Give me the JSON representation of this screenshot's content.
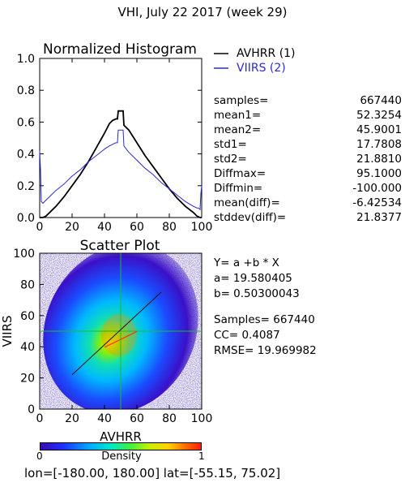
{
  "page_title": "VHI,  July 22 2017 (week 29)",
  "histogram": {
    "title": "Normalized Histogram",
    "legend": [
      {
        "label": "AVHRR (1)",
        "color": "#000000"
      },
      {
        "label": "VIIRS (2)",
        "color": "#2a2ad2"
      }
    ],
    "xticks": [
      "0",
      "20",
      "40",
      "60",
      "80",
      "100"
    ],
    "yticks": [
      "0.0",
      "0.2",
      "0.4",
      "0.6",
      "0.8",
      "1.0"
    ]
  },
  "stats": [
    {
      "name": "samples=",
      "value": "667440"
    },
    {
      "name": "mean1=",
      "value": "52.3254"
    },
    {
      "name": "mean2=",
      "value": "45.9001"
    },
    {
      "name": "std1=",
      "value": "17.7808"
    },
    {
      "name": "std2=",
      "value": "21.8810"
    },
    {
      "name": "Diffmax=",
      "value": "95.1000"
    },
    {
      "name": "Diffmin=",
      "value": "-100.000"
    },
    {
      "name": "mean(diff)=",
      "value": "-6.42534"
    },
    {
      "name": "stddev(diff)=",
      "value": "21.8377"
    }
  ],
  "scatter": {
    "title": "Scatter Plot",
    "xlabel": "AVHRR",
    "ylabel": "VIIRS",
    "xticks": [
      "0",
      "20",
      "40",
      "60",
      "80",
      "100"
    ],
    "yticks": [
      "0",
      "20",
      "40",
      "60",
      "80",
      "100"
    ],
    "equation": "Y= a +b * X",
    "a_line": "a= 19.580405",
    "b_line": "b= 0.50300043",
    "samples_line": "Samples= 667440",
    "cc_line": "CC=  0.4087",
    "rmse_line": "RMSE= 19.969982"
  },
  "colorbar": {
    "label": "Density",
    "min_label": "0",
    "max_label": "1"
  },
  "footer": "lon=[-180.00, 180.00] lat=[-55.15, 75.02]",
  "chart_data": [
    {
      "type": "line",
      "title": "Normalized Histogram",
      "xlim": [
        0,
        100
      ],
      "ylim": [
        0,
        1
      ],
      "series": [
        {
          "name": "AVHRR (1)",
          "color": "#000000",
          "x": [
            0,
            2,
            4,
            6,
            8,
            10,
            15,
            20,
            25,
            30,
            35,
            40,
            43,
            45,
            47,
            48,
            48.5,
            50,
            51.5,
            52,
            53,
            55,
            60,
            65,
            70,
            75,
            80,
            85,
            90,
            95,
            97,
            99,
            100
          ],
          "y": [
            0.0,
            0.0,
            0.01,
            0.03,
            0.05,
            0.07,
            0.13,
            0.2,
            0.27,
            0.35,
            0.44,
            0.53,
            0.59,
            0.61,
            0.62,
            0.62,
            0.67,
            0.67,
            0.67,
            0.58,
            0.57,
            0.55,
            0.47,
            0.39,
            0.32,
            0.25,
            0.18,
            0.12,
            0.07,
            0.03,
            0.01,
            0.0,
            0.0
          ]
        },
        {
          "name": "VIIRS (2)",
          "color": "#2a2ad2",
          "x": [
            0,
            0.5,
            1,
            2,
            4,
            6,
            10,
            15,
            20,
            25,
            30,
            35,
            40,
            43,
            45,
            47,
            48,
            48.5,
            50,
            51.5,
            52,
            55,
            60,
            65,
            70,
            75,
            80,
            85,
            90,
            95,
            97,
            98,
            99,
            99.5,
            100
          ],
          "y": [
            0.42,
            0.3,
            0.1,
            0.09,
            0.11,
            0.13,
            0.17,
            0.21,
            0.26,
            0.3,
            0.35,
            0.39,
            0.43,
            0.45,
            0.46,
            0.47,
            0.47,
            0.55,
            0.55,
            0.55,
            0.45,
            0.41,
            0.36,
            0.31,
            0.27,
            0.22,
            0.18,
            0.14,
            0.1,
            0.07,
            0.06,
            0.06,
            0.05,
            0.15,
            0.2
          ]
        }
      ]
    },
    {
      "type": "heatmap",
      "title": "Scatter Plot",
      "xlabel": "AVHRR",
      "ylabel": "VIIRS",
      "xlim": [
        0,
        100
      ],
      "ylim": [
        0,
        100
      ],
      "samples": 667440,
      "regression": {
        "a": 19.580405,
        "b": 0.50300043
      },
      "cc": 0.4087,
      "rmse": 19.969982,
      "density_center": [
        48,
        42
      ],
      "reference_lines": {
        "x_mean": 50,
        "y_mean": 50,
        "diagonal": "y=x",
        "colors": [
          "#22bb22",
          "#ff3300"
        ]
      }
    }
  ]
}
